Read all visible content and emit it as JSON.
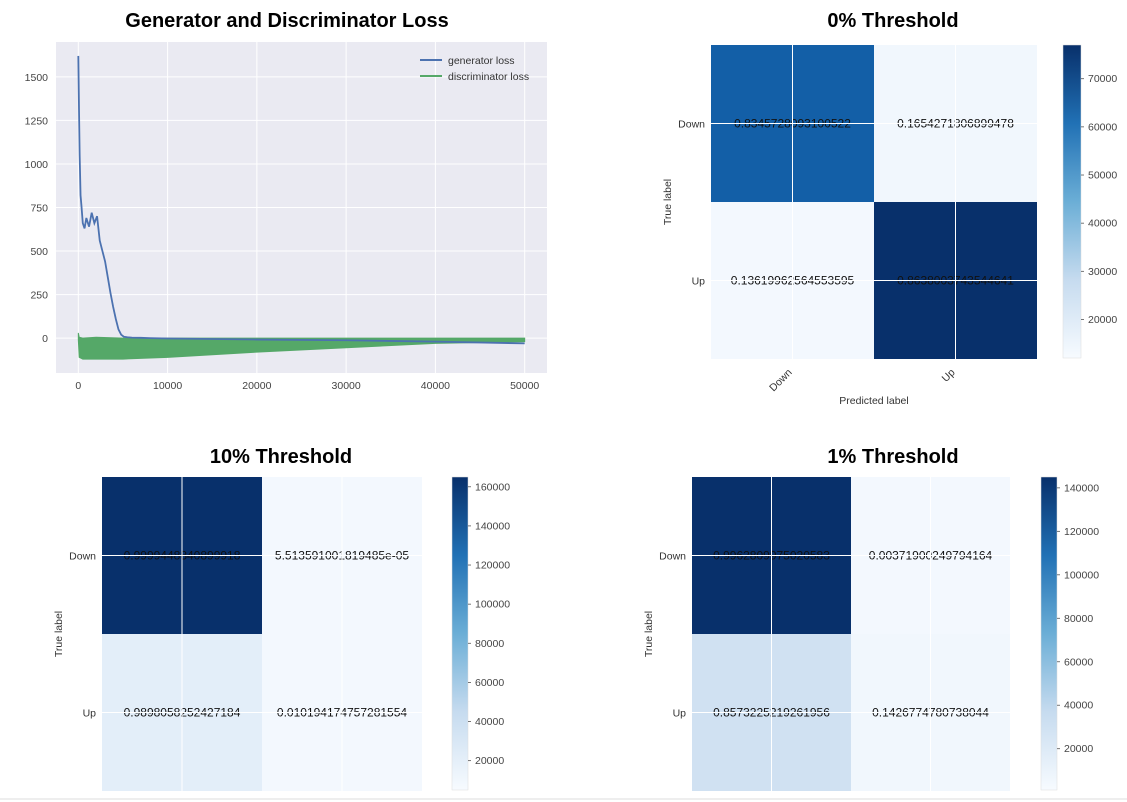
{
  "chart_data": [
    {
      "type": "line",
      "title": "Generator and Discriminator Loss",
      "xlim": [
        -2500,
        52500
      ],
      "ylim": [
        -200,
        1700
      ],
      "xticks": [
        0,
        10000,
        20000,
        30000,
        40000,
        50000
      ],
      "xtick_labels": [
        "0",
        "10000",
        "20000",
        "30000",
        "40000",
        "50000"
      ],
      "yticks": [
        0,
        250,
        500,
        750,
        1000,
        1250,
        1500
      ],
      "ytick_labels": [
        "0",
        "250",
        "500",
        "750",
        "1000",
        "1250",
        "1500"
      ],
      "grid": true,
      "legend": "top-right",
      "series": [
        {
          "name": "generator loss",
          "color": "#4c72b0",
          "x": [
            0,
            80,
            150,
            250,
            350,
            500,
            700,
            900,
            1200,
            1500,
            1800,
            2100,
            2400,
            2700,
            3000,
            3300,
            3600,
            3900,
            4200,
            4500,
            4800,
            5100,
            5500,
            6000,
            7000,
            8000,
            10000,
            15000,
            20000,
            30000,
            40000,
            50000
          ],
          "y": [
            1620,
            1300,
            1050,
            820,
            760,
            660,
            630,
            690,
            640,
            720,
            660,
            700,
            560,
            500,
            440,
            350,
            260,
            180,
            110,
            50,
            20,
            8,
            5,
            3,
            2,
            0,
            -2,
            -5,
            -8,
            -12,
            -20,
            -30
          ]
        },
        {
          "name": "discriminator loss",
          "color": "#55a868",
          "x": [
            0,
            100,
            500,
            2000,
            5000,
            10000,
            20000,
            30000,
            40000,
            50000
          ],
          "y_upper": [
            30,
            5,
            0,
            5,
            0,
            0,
            0,
            0,
            0,
            0
          ],
          "y_lower": [
            -10,
            -110,
            -120,
            -120,
            -120,
            -110,
            -80,
            -55,
            -30,
            -20
          ]
        }
      ]
    },
    {
      "type": "heatmap",
      "title": "0% Threshold",
      "xlabel": "Predicted label",
      "ylabel": "True label",
      "row_labels": [
        "Down",
        "Up"
      ],
      "col_labels": [
        "Down",
        "Up"
      ],
      "cell_text": [
        [
          "0.8345728093100522",
          "0.1654271806899478"
        ],
        [
          "0.13619962564553595",
          "0.8638003743544641"
        ]
      ],
      "color_intensity": [
        [
          0.82,
          0.03
        ],
        [
          0.02,
          1.0
        ]
      ],
      "colorbar_ticks": [
        20000,
        30000,
        40000,
        50000,
        60000,
        70000
      ],
      "colorbar_range": [
        12000,
        77000
      ]
    },
    {
      "type": "heatmap",
      "title": "10% Threshold",
      "xlabel": "",
      "ylabel": "True label",
      "row_labels": [
        "Down",
        "Up"
      ],
      "col_labels": [],
      "cell_text": [
        [
          "0.9999448840899918",
          "5.513591001819485e-05"
        ],
        [
          "0.9898058252427184",
          "0.010194174757281554"
        ]
      ],
      "color_intensity": [
        [
          1.0,
          0.02
        ],
        [
          0.1,
          0.02
        ]
      ],
      "colorbar_ticks": [
        20000,
        40000,
        60000,
        80000,
        100000,
        120000,
        140000,
        160000
      ],
      "colorbar_range": [
        5000,
        165000
      ]
    },
    {
      "type": "heatmap",
      "title": "1% Threshold",
      "xlabel": "",
      "ylabel": "True label",
      "row_labels": [
        "Down",
        "Up"
      ],
      "col_labels": [],
      "cell_text": [
        [
          "0.9962809975020583",
          "0.00371900249794164"
        ],
        [
          "0.8573225219261956",
          "0.1426774780738044"
        ]
      ],
      "color_intensity": [
        [
          1.0,
          0.02
        ],
        [
          0.2,
          0.03
        ]
      ],
      "colorbar_ticks": [
        20000,
        40000,
        60000,
        80000,
        100000,
        120000,
        140000
      ],
      "colorbar_range": [
        1000,
        145000
      ]
    }
  ]
}
